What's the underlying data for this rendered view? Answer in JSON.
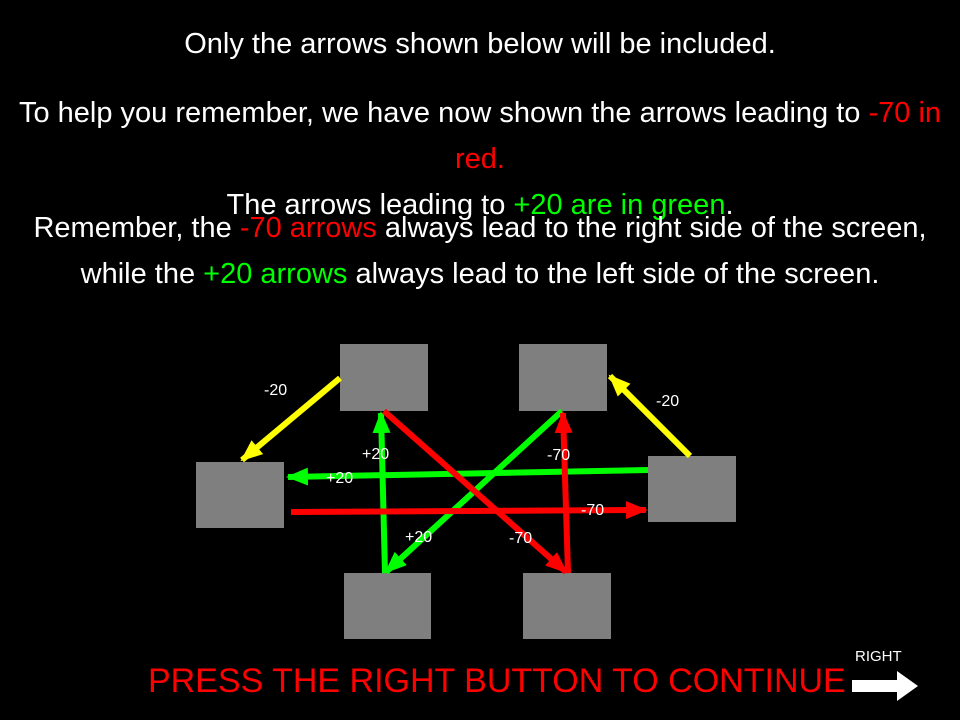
{
  "instructions": {
    "line1": "Only the arrows shown below will be included.",
    "para2": [
      {
        "text": "To help you remember, we have now shown the arrows leading to ",
        "color": "white"
      },
      {
        "text": "-70 in red.",
        "color": "red"
      },
      {
        "text": " The arrows leading to ",
        "color": "white"
      },
      {
        "text": "+20 are in green",
        "color": "green"
      },
      {
        "text": ".",
        "color": "white"
      }
    ],
    "para3": [
      {
        "text": "Remember, the ",
        "color": "white"
      },
      {
        "text": "-70 arrows",
        "color": "red"
      },
      {
        "text": " always lead to the right side of the screen, while the ",
        "color": "white"
      },
      {
        "text": "+20 arrows",
        "color": "green"
      },
      {
        "text": " always lead to the left side of the screen.",
        "color": "white"
      }
    ]
  },
  "diagram": {
    "nodes": [
      "top-left",
      "top-right",
      "left",
      "right",
      "bottom-left",
      "bottom-right"
    ],
    "edges": [
      {
        "from": "top-left",
        "to": "left",
        "label": "-20",
        "color": "yellow"
      },
      {
        "from": "right",
        "to": "top-right",
        "label": "-20",
        "color": "yellow"
      },
      {
        "from": "bottom-left",
        "to": "top-left",
        "label": "+20",
        "color": "green"
      },
      {
        "from": "right",
        "to": "left",
        "label": "+20",
        "color": "green"
      },
      {
        "from": "top-right",
        "to": "bottom-left",
        "label": "+20",
        "color": "green"
      },
      {
        "from": "bottom-right",
        "to": "top-right",
        "label": "-70",
        "color": "red"
      },
      {
        "from": "left",
        "to": "right",
        "label": "-70",
        "color": "red"
      },
      {
        "from": "top-left",
        "to": "bottom-right",
        "label": "-70",
        "color": "red"
      }
    ]
  },
  "footer": {
    "prompt": "PRESS THE RIGHT BUTTON TO CONTINUE",
    "right_label": "RIGHT"
  },
  "colors": {
    "background": "#000000",
    "node": "#7f7f7f",
    "red": "#ff0000",
    "green": "#00ff00",
    "yellow": "#ffff00",
    "text": "#ffffff"
  }
}
